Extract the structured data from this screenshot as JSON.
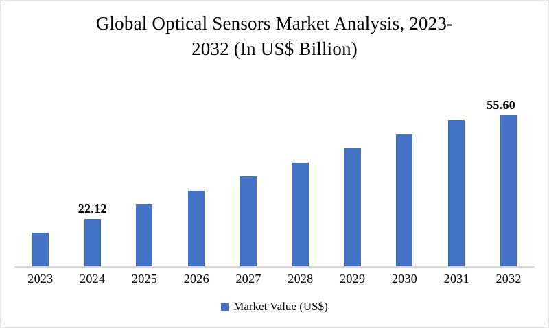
{
  "chart_data": {
    "type": "bar",
    "title": "Global Optical Sensors Market Analysis, 2023-2032 (In US$ Billion)",
    "title_lines": [
      "Global Optical Sensors Market Analysis, 2023-",
      "2032 (In US$ Billion)"
    ],
    "categories": [
      "2023",
      "2024",
      "2025",
      "2026",
      "2027",
      "2028",
      "2029",
      "2030",
      "2031",
      "2032"
    ],
    "series": [
      {
        "name": "Market Value (US$)",
        "values": [
          17.94,
          22.12,
          26.31,
          30.49,
          34.68,
          38.86,
          43.05,
          47.23,
          51.42,
          55.6
        ],
        "data_labels": [
          "",
          "22.12",
          "",
          "",
          "",
          "",
          "",
          "",
          "",
          "55.60"
        ]
      }
    ],
    "legend": {
      "position": "bottom",
      "entries": [
        "Market Value (US$)"
      ]
    },
    "bar_color": "#4472C4",
    "axis_line_color": "#D9D9D9",
    "text_color": "#000000",
    "xlabel": "",
    "ylabel": "",
    "ylim": [
      8,
      58
    ],
    "grid": false
  }
}
